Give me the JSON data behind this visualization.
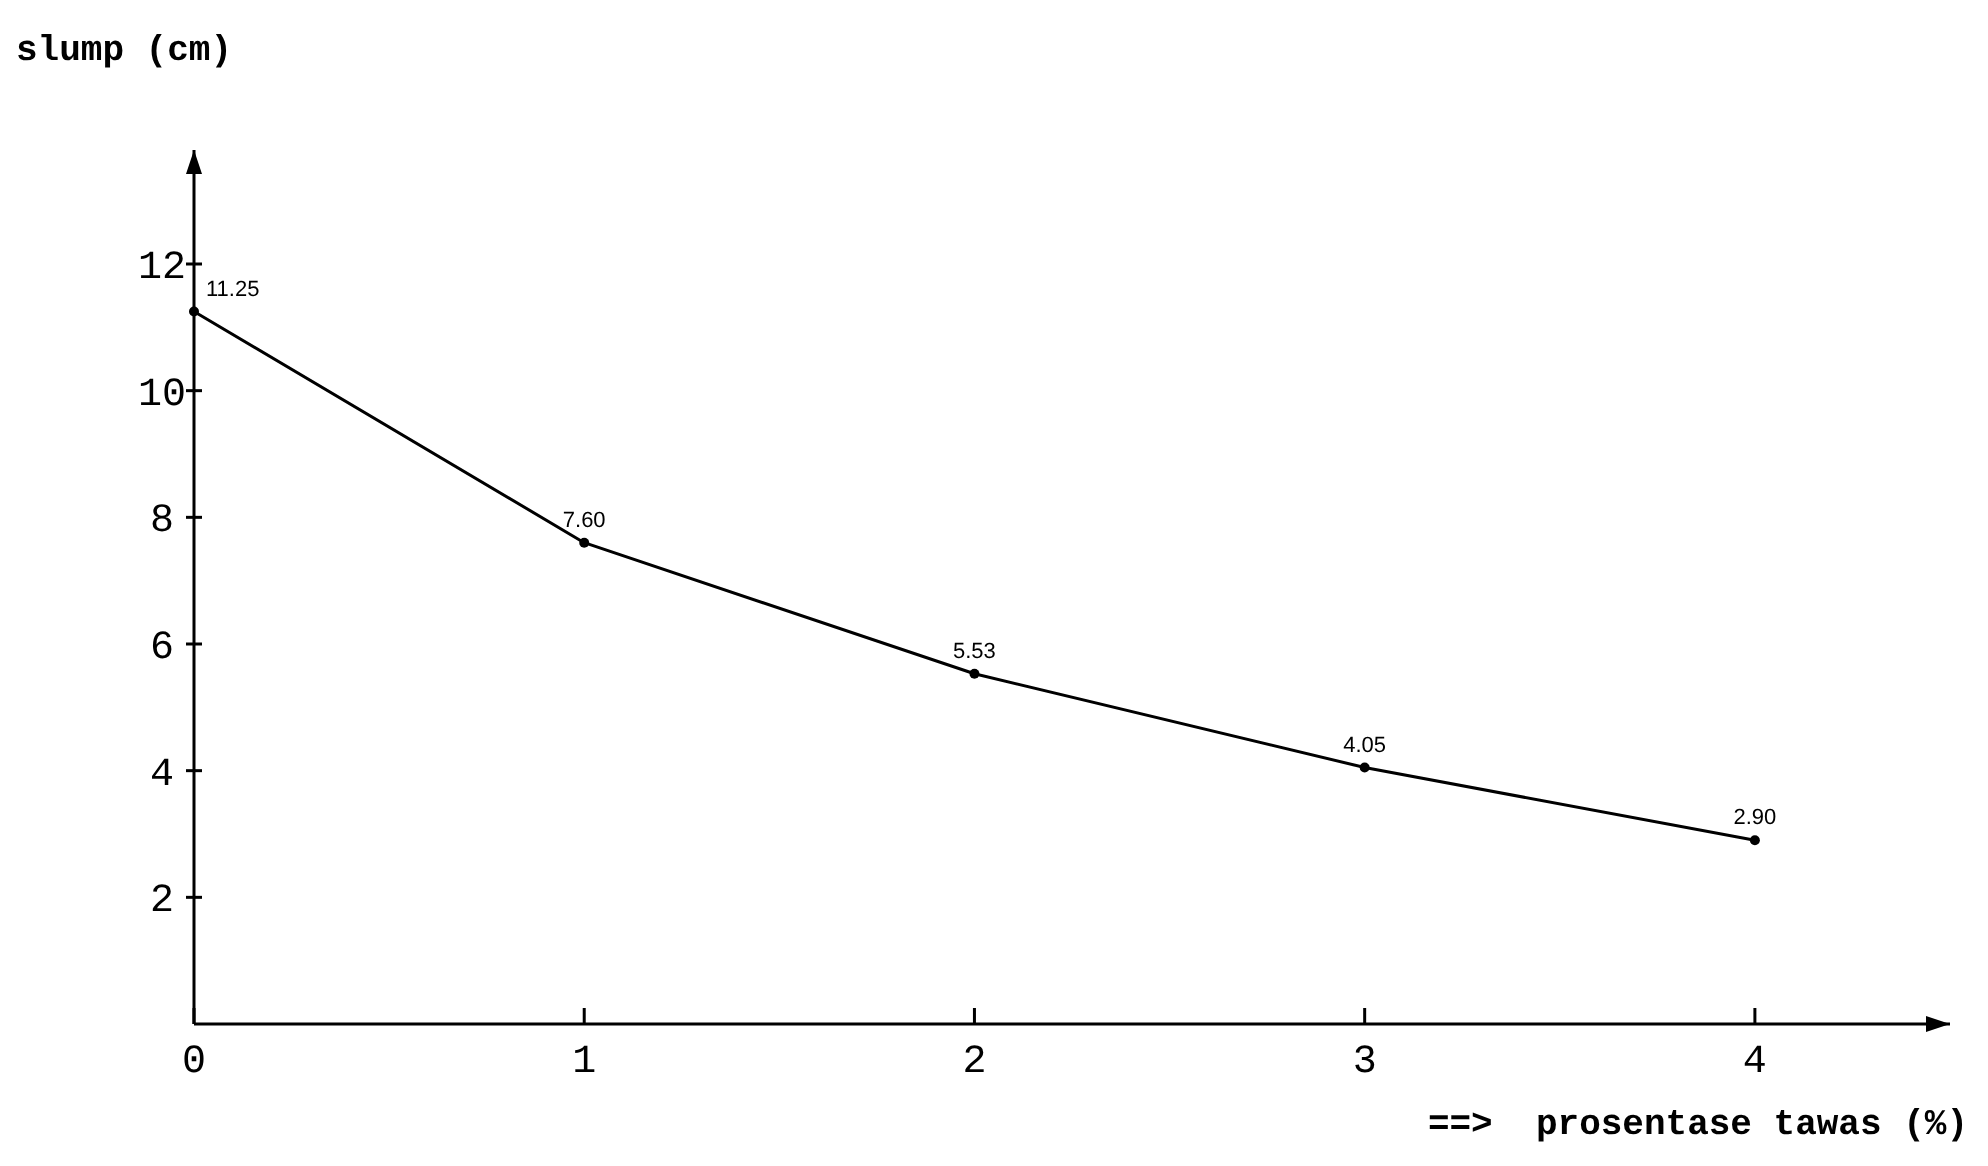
{
  "chart_data": {
    "type": "line",
    "xlabel": "==>  prosentase tawas (%)",
    "ylabel": "slump (cm)",
    "x": [
      0,
      1,
      2,
      3,
      4
    ],
    "series": [
      {
        "color": "#000000",
        "values": [
          11.25,
          7.6,
          5.53,
          4.05,
          2.9
        ]
      }
    ],
    "value_labels": [
      "11.25",
      "7.60",
      "5.53",
      "4.05",
      "2.90"
    ],
    "xlim": [
      0,
      4.5
    ],
    "xticks": [
      0,
      1,
      2,
      3,
      4
    ],
    "ylim": [
      0,
      13.8
    ],
    "yticks": [
      2,
      4,
      6,
      8,
      10,
      12
    ],
    "marker": "circle",
    "line_style": "solid",
    "grid": false
  }
}
